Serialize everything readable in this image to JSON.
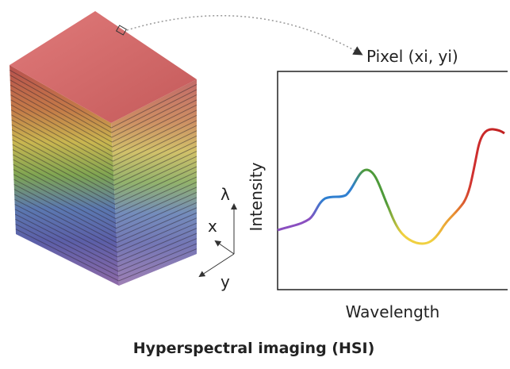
{
  "labels": {
    "pixel": "Pixel (xi, yi)",
    "y_axis": "Intensity",
    "x_axis": "Wavelength",
    "lambda": "λ",
    "x": "x",
    "y": "y"
  },
  "title": "Hyperspectral imaging (HSI)"
}
